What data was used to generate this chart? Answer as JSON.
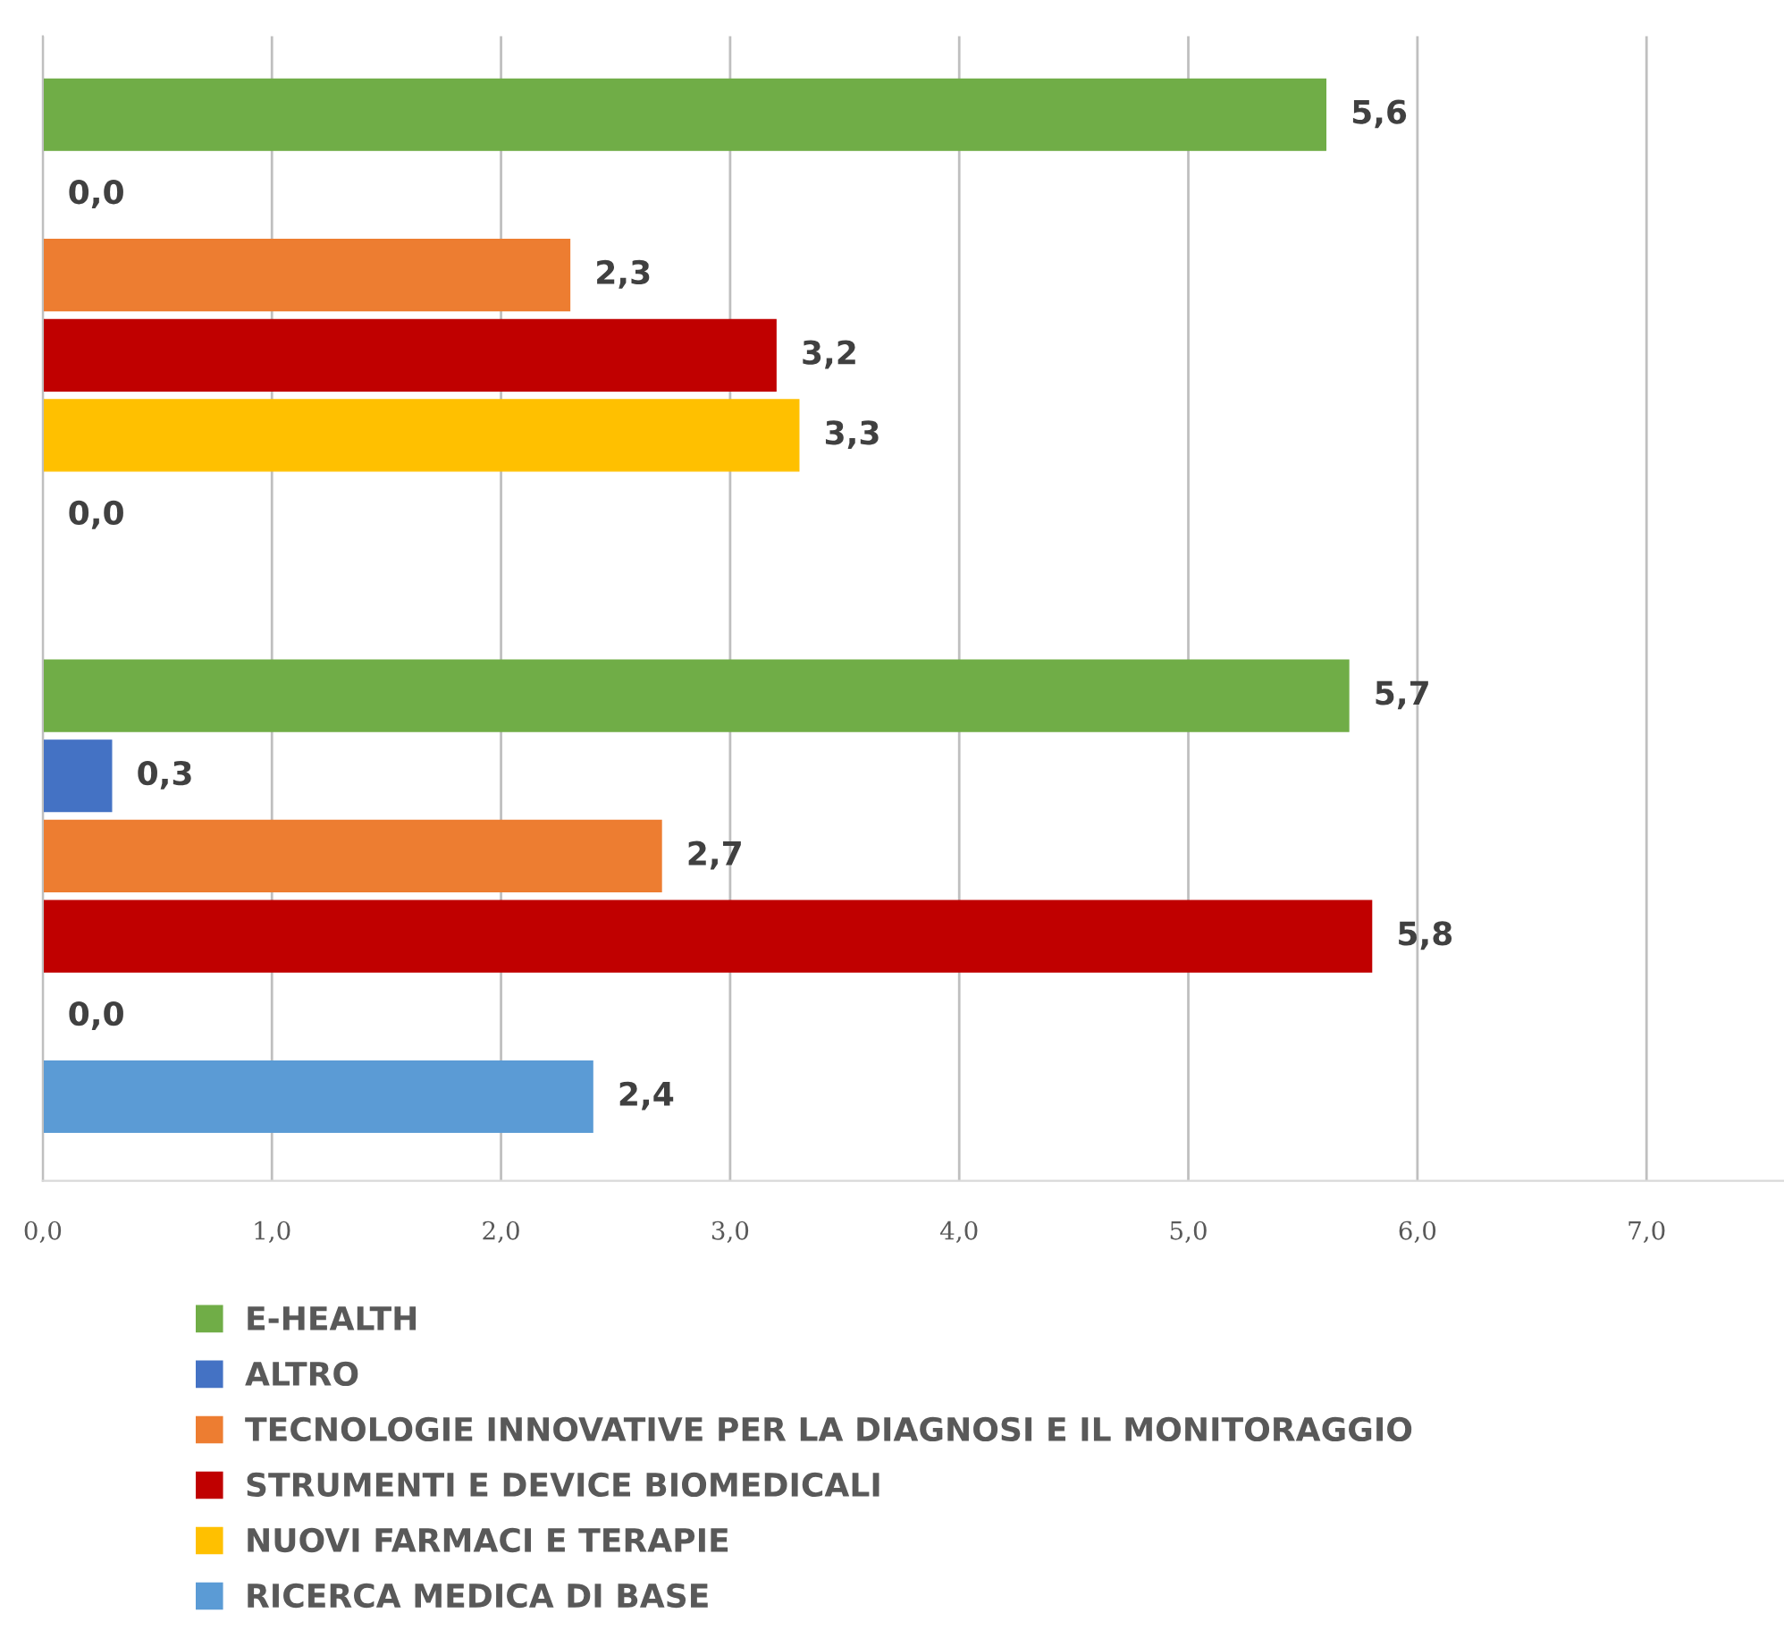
{
  "chart_data": {
    "type": "bar",
    "orientation": "horizontal",
    "categories": [
      null,
      null
    ],
    "series": [
      {
        "name": "E-HEALTH",
        "color": "#70ad47",
        "values": [
          5.6,
          5.7
        ],
        "value_labels": [
          "5,6",
          "5,7"
        ]
      },
      {
        "name": "ALTRO",
        "color": "#4472c4",
        "values": [
          0.0,
          0.3
        ],
        "value_labels": [
          "0,0",
          "0,3"
        ]
      },
      {
        "name": "TECNOLOGIE INNOVATIVE PER LA DIAGNOSI E IL MONITORAGGIO",
        "color": "#ed7d31",
        "values": [
          2.3,
          2.7
        ],
        "value_labels": [
          "2,3",
          "2,7"
        ]
      },
      {
        "name": "STRUMENTI E DEVICE BIOMEDICALI",
        "color": "#c00000",
        "values": [
          3.2,
          5.8
        ],
        "value_labels": [
          "3,2",
          "5,8"
        ]
      },
      {
        "name": "NUOVI FARMACI E TERAPIE",
        "color": "#ffc000",
        "values": [
          3.3,
          0.0
        ],
        "value_labels": [
          "3,3",
          "0,0"
        ]
      },
      {
        "name": "RICERCA MEDICA DI BASE",
        "color": "#5b9bd5",
        "values": [
          0.0,
          2.4
        ],
        "value_labels": [
          "0,0",
          "2,4"
        ]
      }
    ],
    "xlim": [
      0,
      7.6
    ],
    "xticks": [
      {
        "value": 0,
        "label": "0,0"
      },
      {
        "value": 1,
        "label": "1,0"
      },
      {
        "value": 2,
        "label": "2,0"
      },
      {
        "value": 3,
        "label": "3,0"
      },
      {
        "value": 4,
        "label": "4,0"
      },
      {
        "value": 5,
        "label": "5,0"
      },
      {
        "value": 6,
        "label": "6,0"
      },
      {
        "value": 7,
        "label": "7,0"
      }
    ],
    "grid": "x",
    "legend": "bottom"
  }
}
